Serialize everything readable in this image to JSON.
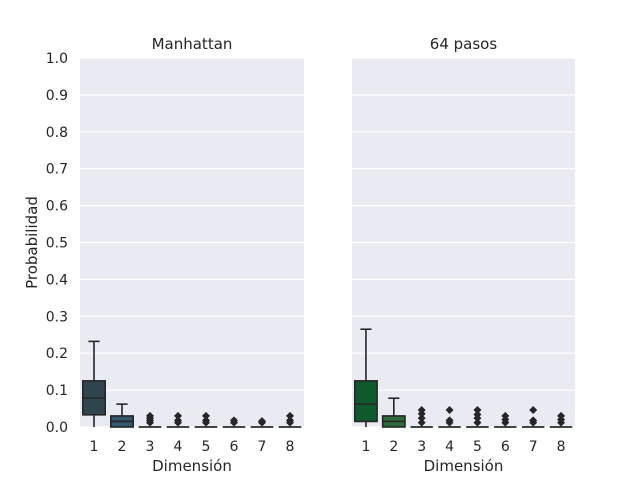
{
  "chart_data": [
    {
      "type": "box",
      "title": "Manhattan",
      "xlabel": "Dimensión",
      "ylabel": "Probabilidad",
      "ylim": [
        0,
        1.0
      ],
      "yticks": [
        "0.0",
        "0.1",
        "0.2",
        "0.3",
        "0.4",
        "0.5",
        "0.6",
        "0.7",
        "0.8",
        "0.9",
        "1.0"
      ],
      "categories": [
        "1",
        "2",
        "3",
        "4",
        "5",
        "6",
        "7",
        "8"
      ],
      "colors": [
        "#2f4550",
        "#33586b",
        "#2f4550",
        "#33586b",
        "#2f4550",
        "#33586b",
        "#2f4550",
        "#33586b"
      ],
      "boxes": [
        {
          "q1": 0.033,
          "median": 0.078,
          "q3": 0.125,
          "whisker_low": 0.0,
          "whisker_high": 0.232,
          "outliers": []
        },
        {
          "q1": 0.0,
          "median": 0.015,
          "q3": 0.03,
          "whisker_low": 0.0,
          "whisker_high": 0.062,
          "outliers": []
        },
        {
          "q1": 0.0,
          "median": 0.0,
          "q3": 0.0,
          "whisker_low": 0.0,
          "whisker_high": 0.0,
          "outliers": [
            0.012,
            0.018,
            0.024,
            0.03
          ]
        },
        {
          "q1": 0.0,
          "median": 0.0,
          "q3": 0.0,
          "whisker_low": 0.0,
          "whisker_high": 0.0,
          "outliers": [
            0.012,
            0.018,
            0.03
          ]
        },
        {
          "q1": 0.0,
          "median": 0.0,
          "q3": 0.0,
          "whisker_low": 0.0,
          "whisker_high": 0.0,
          "outliers": [
            0.012,
            0.018,
            0.03
          ]
        },
        {
          "q1": 0.0,
          "median": 0.0,
          "q3": 0.0,
          "whisker_low": 0.0,
          "whisker_high": 0.0,
          "outliers": [
            0.012,
            0.018
          ]
        },
        {
          "q1": 0.0,
          "median": 0.0,
          "q3": 0.0,
          "whisker_low": 0.0,
          "whisker_high": 0.0,
          "outliers": [
            0.012,
            0.016
          ]
        },
        {
          "q1": 0.0,
          "median": 0.0,
          "q3": 0.0,
          "whisker_low": 0.0,
          "whisker_high": 0.0,
          "outliers": [
            0.012,
            0.018,
            0.03
          ]
        }
      ]
    },
    {
      "type": "box",
      "title": "64 pasos",
      "xlabel": "Dimensión",
      "ylabel": "",
      "ylim": [
        0,
        1.0
      ],
      "categories": [
        "1",
        "2",
        "3",
        "4",
        "5",
        "6",
        "7",
        "8"
      ],
      "colors": [
        "#0f5a2c",
        "#2d6b3e",
        "#0f5a2c",
        "#2d6b3e",
        "#0f5a2c",
        "#2d6b3e",
        "#0f5a2c",
        "#2d6b3e"
      ],
      "boxes": [
        {
          "q1": 0.015,
          "median": 0.062,
          "q3": 0.125,
          "whisker_low": 0.0,
          "whisker_high": 0.265,
          "outliers": []
        },
        {
          "q1": 0.0,
          "median": 0.015,
          "q3": 0.03,
          "whisker_low": 0.0,
          "whisker_high": 0.078,
          "outliers": []
        },
        {
          "q1": 0.0,
          "median": 0.0,
          "q3": 0.0,
          "whisker_low": 0.0,
          "whisker_high": 0.0,
          "outliers": [
            0.012,
            0.024,
            0.036,
            0.046
          ]
        },
        {
          "q1": 0.0,
          "median": 0.0,
          "q3": 0.0,
          "whisker_low": 0.0,
          "whisker_high": 0.0,
          "outliers": [
            0.012,
            0.018,
            0.046
          ]
        },
        {
          "q1": 0.0,
          "median": 0.0,
          "q3": 0.0,
          "whisker_low": 0.0,
          "whisker_high": 0.0,
          "outliers": [
            0.012,
            0.024,
            0.034,
            0.046
          ]
        },
        {
          "q1": 0.0,
          "median": 0.0,
          "q3": 0.0,
          "whisker_low": 0.0,
          "whisker_high": 0.0,
          "outliers": [
            0.012,
            0.02,
            0.03
          ]
        },
        {
          "q1": 0.0,
          "median": 0.0,
          "q3": 0.0,
          "whisker_low": 0.0,
          "whisker_high": 0.0,
          "outliers": [
            0.012,
            0.018,
            0.046
          ]
        },
        {
          "q1": 0.0,
          "median": 0.0,
          "q3": 0.0,
          "whisker_low": 0.0,
          "whisker_high": 0.0,
          "outliers": [
            0.012,
            0.02,
            0.03
          ]
        }
      ]
    }
  ],
  "style": {
    "plot_background": "#eaeaf2",
    "grid_color": "#ffffff",
    "line_color": "#262626"
  }
}
